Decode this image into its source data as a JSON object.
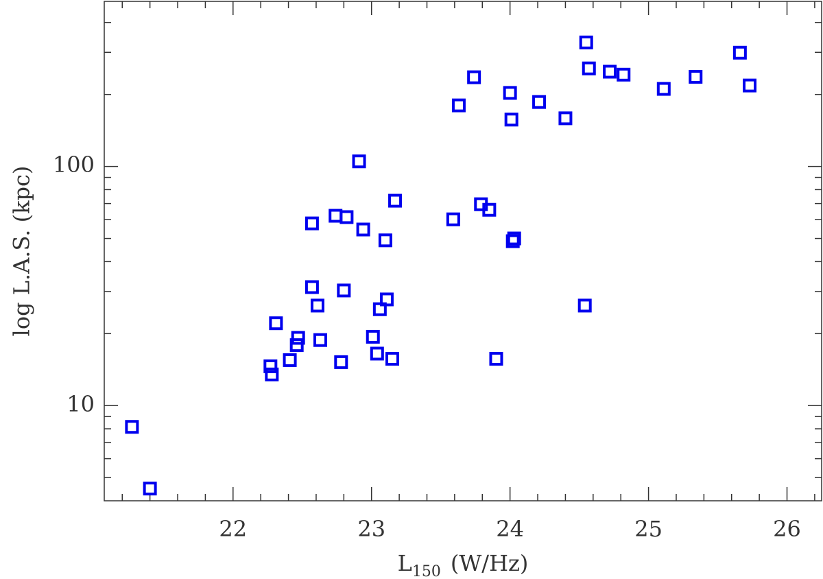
{
  "chart_data": {
    "type": "scatter",
    "xlabel": "L",
    "xlabel_sub": "150",
    "xlabel_unit": "(W/Hz)",
    "ylabel": "log L.A.S. (kpc)",
    "marker": "square",
    "color": "#0000ee",
    "yscale": "log",
    "xlim": [
      21.07,
      26.25
    ],
    "ylim": [
      4,
      490
    ],
    "xticks": [
      22,
      23,
      24,
      25,
      26
    ],
    "yticks": [
      10,
      100
    ],
    "xminor": [
      21.2,
      21.4,
      21.6,
      21.8,
      22.2,
      22.4,
      22.6,
      22.8,
      23.2,
      23.4,
      23.6,
      23.8,
      24.2,
      24.4,
      24.6,
      24.8,
      25.2,
      25.4,
      25.6,
      25.8,
      26.2
    ],
    "yminor": [
      5,
      6,
      7,
      8,
      9,
      20,
      30,
      40,
      50,
      60,
      70,
      80,
      90,
      200,
      300,
      400
    ],
    "x": [
      21.27,
      21.4,
      22.27,
      22.28,
      22.31,
      22.41,
      22.46,
      22.47,
      22.57,
      22.57,
      22.61,
      22.63,
      22.74,
      22.82,
      22.78,
      22.8,
      22.91,
      22.94,
      23.01,
      23.04,
      23.06,
      23.1,
      23.11,
      23.15,
      23.17,
      23.59,
      23.63,
      23.74,
      23.79,
      23.85,
      23.9,
      24.0,
      24.01,
      24.02,
      24.03,
      24.21,
      24.4,
      24.55,
      24.57,
      24.54,
      24.72,
      24.82,
      25.11,
      25.34,
      25.66,
      25.73
    ],
    "values": [
      8.15,
      4.5,
      14.6,
      13.5,
      22.1,
      15.5,
      17.9,
      19.2,
      31.3,
      57.8,
      26.2,
      18.8,
      62.2,
      61.4,
      15.2,
      30.3,
      105,
      54.5,
      19.4,
      16.5,
      25.3,
      49.1,
      27.8,
      15.7,
      71.9,
      60.1,
      180,
      236,
      69.5,
      65.9,
      15.7,
      203,
      157,
      48.7,
      50.0,
      186,
      159,
      330,
      257,
      26.2,
      249,
      242,
      211,
      237,
      299,
      218
    ]
  }
}
